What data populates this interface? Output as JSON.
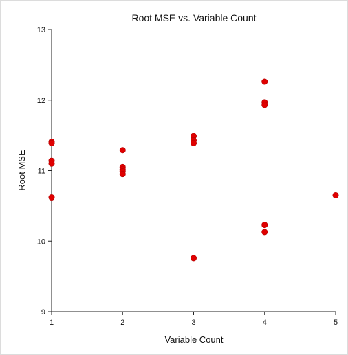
{
  "chart_data": {
    "type": "scatter",
    "title": "Root MSE vs. Variable Count",
    "xlabel": "Variable Count",
    "ylabel": "Root MSE",
    "xlim": [
      1,
      5
    ],
    "ylim": [
      9,
      13
    ],
    "xticks": [
      1,
      2,
      3,
      4,
      5
    ],
    "yticks": [
      9,
      10,
      11,
      12,
      13
    ],
    "grid": false,
    "marker_color": "#e00000",
    "points": [
      {
        "x": 1,
        "y": 11.41
      },
      {
        "x": 1,
        "y": 11.39
      },
      {
        "x": 1,
        "y": 11.14
      },
      {
        "x": 1,
        "y": 11.1
      },
      {
        "x": 1,
        "y": 10.62
      },
      {
        "x": 2,
        "y": 11.29
      },
      {
        "x": 2,
        "y": 11.05
      },
      {
        "x": 2,
        "y": 11.02
      },
      {
        "x": 2,
        "y": 10.99
      },
      {
        "x": 2,
        "y": 10.95
      },
      {
        "x": 3,
        "y": 11.49
      },
      {
        "x": 3,
        "y": 11.43
      },
      {
        "x": 3,
        "y": 11.39
      },
      {
        "x": 3,
        "y": 9.76
      },
      {
        "x": 4,
        "y": 12.26
      },
      {
        "x": 4,
        "y": 11.97
      },
      {
        "x": 4,
        "y": 11.93
      },
      {
        "x": 4,
        "y": 10.23
      },
      {
        "x": 4,
        "y": 10.13
      },
      {
        "x": 5,
        "y": 10.65
      }
    ]
  }
}
